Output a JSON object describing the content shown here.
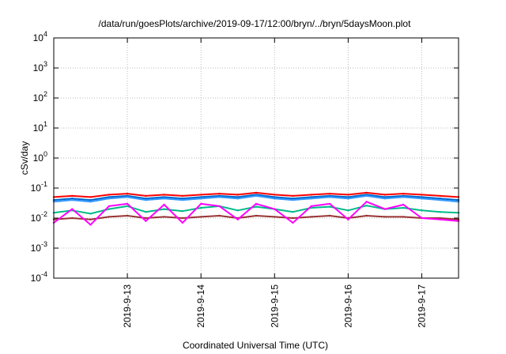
{
  "chart_data": {
    "type": "line",
    "title": "/data/run/goesPlots/archive/2019-09-17/12:00/bryn/../bryn/5daysMoon.plot",
    "xlabel": "Coordinated Universal Time (UTC)",
    "ylabel": "cSv/day",
    "yscale": "log",
    "ylim": [
      0.0001,
      10000
    ],
    "y_ticks": [
      {
        "base": "10",
        "exp": "-4",
        "value": 0.0001
      },
      {
        "base": "10",
        "exp": "-3",
        "value": 0.001
      },
      {
        "base": "10",
        "exp": "-2",
        "value": 0.01
      },
      {
        "base": "10",
        "exp": "-1",
        "value": 0.1
      },
      {
        "base": "10",
        "exp": "0",
        "value": 1
      },
      {
        "base": "10",
        "exp": "1",
        "value": 10
      },
      {
        "base": "10",
        "exp": "2",
        "value": 100
      },
      {
        "base": "10",
        "exp": "3",
        "value": 1000
      },
      {
        "base": "10",
        "exp": "4",
        "value": 10000
      }
    ],
    "xlim": [
      "2019-09-12T00:00",
      "2019-09-17T12:00"
    ],
    "x_ticks": [
      "2019-9-13",
      "2019-9-14",
      "2019-9-15",
      "2019-9-16",
      "2019-9-17"
    ],
    "x_tick_dates": [
      "2019-09-13",
      "2019-09-14",
      "2019-09-15",
      "2019-09-16",
      "2019-09-17"
    ],
    "grid": true,
    "legend": "none",
    "x": [
      "2019-09-12T00:00",
      "2019-09-12T06:00",
      "2019-09-12T12:00",
      "2019-09-12T18:00",
      "2019-09-13T00:00",
      "2019-09-13T06:00",
      "2019-09-13T12:00",
      "2019-09-13T18:00",
      "2019-09-14T00:00",
      "2019-09-14T06:00",
      "2019-09-14T12:00",
      "2019-09-14T18:00",
      "2019-09-15T00:00",
      "2019-09-15T06:00",
      "2019-09-15T12:00",
      "2019-09-15T18:00",
      "2019-09-16T00:00",
      "2019-09-16T06:00",
      "2019-09-16T12:00",
      "2019-09-16T18:00",
      "2019-09-17T00:00",
      "2019-09-17T06:00",
      "2019-09-17T12:00"
    ],
    "series": [
      {
        "color": "#ff0000",
        "values": [
          0.05,
          0.055,
          0.05,
          0.06,
          0.065,
          0.055,
          0.06,
          0.055,
          0.06,
          0.065,
          0.06,
          0.07,
          0.06,
          0.055,
          0.06,
          0.065,
          0.06,
          0.07,
          0.06,
          0.065,
          0.06,
          0.055,
          0.05
        ]
      },
      {
        "color": "#0066cc",
        "values": [
          0.04,
          0.045,
          0.04,
          0.05,
          0.055,
          0.045,
          0.05,
          0.045,
          0.05,
          0.055,
          0.05,
          0.06,
          0.05,
          0.045,
          0.05,
          0.055,
          0.05,
          0.06,
          0.05,
          0.055,
          0.05,
          0.045,
          0.04
        ]
      },
      {
        "color": "#3399ff",
        "values": [
          0.035,
          0.04,
          0.035,
          0.045,
          0.05,
          0.04,
          0.045,
          0.04,
          0.045,
          0.05,
          0.045,
          0.055,
          0.045,
          0.04,
          0.045,
          0.05,
          0.045,
          0.055,
          0.045,
          0.05,
          0.045,
          0.04,
          0.035
        ]
      },
      {
        "color": "#00bb88",
        "values": [
          0.015,
          0.018,
          0.014,
          0.02,
          0.025,
          0.016,
          0.02,
          0.017,
          0.022,
          0.025,
          0.018,
          0.024,
          0.02,
          0.016,
          0.022,
          0.024,
          0.018,
          0.026,
          0.02,
          0.022,
          0.018,
          0.016,
          0.015
        ]
      },
      {
        "color": "#993333",
        "values": [
          0.009,
          0.01,
          0.009,
          0.011,
          0.012,
          0.01,
          0.011,
          0.01,
          0.011,
          0.012,
          0.01,
          0.012,
          0.011,
          0.01,
          0.011,
          0.012,
          0.01,
          0.012,
          0.011,
          0.011,
          0.01,
          0.01,
          0.009
        ]
      },
      {
        "color": "#ff00ff",
        "values": [
          0.007,
          0.02,
          0.006,
          0.025,
          0.03,
          0.008,
          0.028,
          0.007,
          0.03,
          0.025,
          0.009,
          0.03,
          0.02,
          0.007,
          0.025,
          0.03,
          0.009,
          0.035,
          0.02,
          0.028,
          0.01,
          0.009,
          0.008
        ]
      }
    ]
  }
}
